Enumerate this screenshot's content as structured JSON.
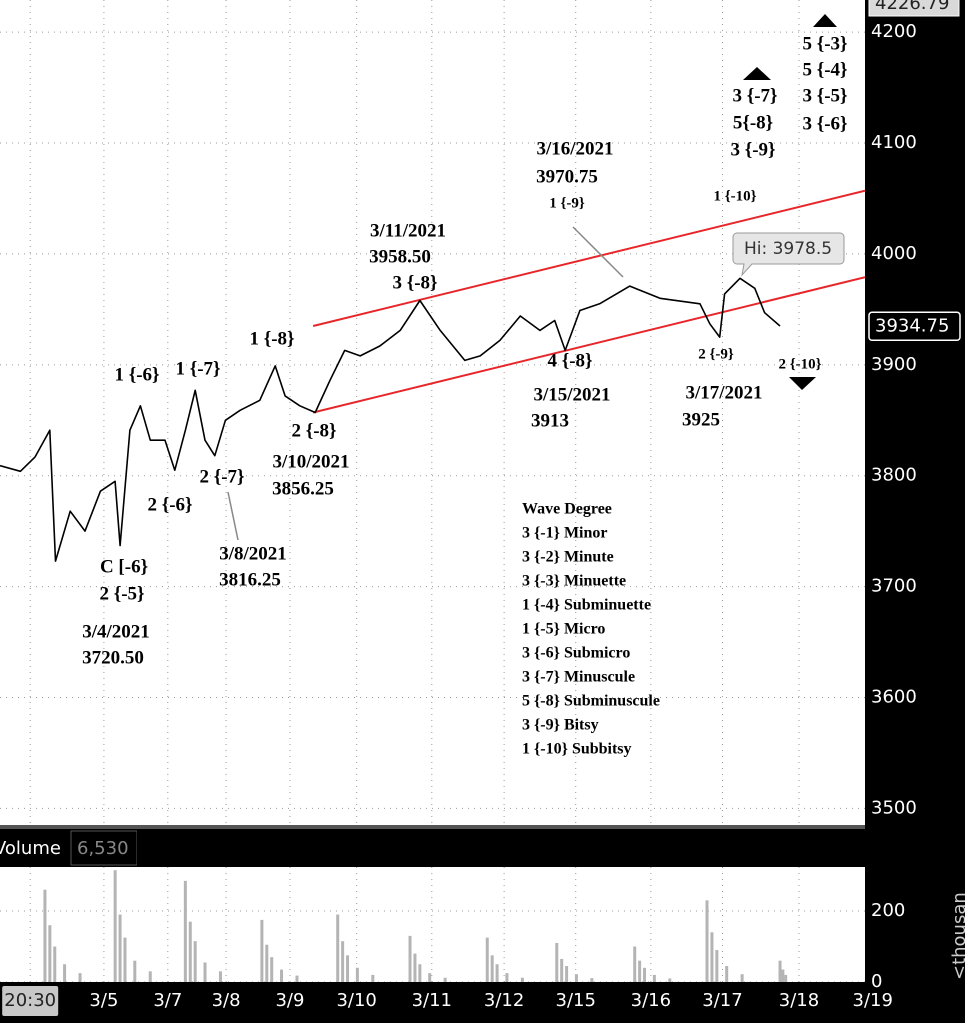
{
  "chart_data": {
    "type": "line",
    "color": "#000000",
    "xlim": [
      -0.43,
      11.89
    ],
    "ylim": [
      3485,
      4229
    ],
    "grid": true,
    "xticks": [
      {
        "value": 0,
        "label": "20:30"
      },
      {
        "value": 1.05,
        "label": "3/5"
      },
      {
        "value": 1.96,
        "label": "3/7"
      },
      {
        "value": 2.79,
        "label": "3/8"
      },
      {
        "value": 3.7,
        "label": "3/9"
      },
      {
        "value": 4.65,
        "label": "3/10"
      },
      {
        "value": 5.72,
        "label": "3/11"
      },
      {
        "value": 6.75,
        "label": "3/12"
      },
      {
        "value": 7.77,
        "label": "3/15"
      },
      {
        "value": 8.84,
        "label": "3/16"
      },
      {
        "value": 9.86,
        "label": "3/17"
      },
      {
        "value": 10.95,
        "label": "3/18"
      },
      {
        "value": 12.0,
        "label": "3/19"
      }
    ],
    "yticks": [
      3500,
      3600,
      3700,
      3800,
      3900,
      4000,
      4100,
      4200
    ],
    "x": [
      -0.43,
      -0.14,
      0.07,
      0.28,
      0.36,
      0.57,
      0.78,
      1.0,
      1.21,
      1.28,
      1.42,
      1.57,
      1.71,
      1.92,
      2.06,
      2.21,
      2.35,
      2.49,
      2.63,
      2.78,
      2.99,
      3.27,
      3.49,
      3.63,
      3.84,
      4.06,
      4.27,
      4.48,
      4.7,
      4.98,
      5.27,
      5.55,
      5.84,
      6.19,
      6.41,
      6.69,
      6.98,
      7.26,
      7.47,
      7.62,
      7.83,
      8.11,
      8.54,
      8.97,
      9.54,
      9.68,
      9.82,
      9.89,
      10.11,
      10.32,
      10.46,
      10.68
    ],
    "values": [
      3809,
      3804,
      3817,
      3841,
      3723,
      3768,
      3750,
      3786,
      3795,
      3737,
      3841,
      3863,
      3832,
      3832,
      3805,
      3841,
      3877,
      3832,
      3818,
      3850,
      3859,
      3868,
      3899,
      3872,
      3863,
      3857,
      3886,
      3913,
      3908,
      3917,
      3931,
      3958,
      3931,
      3904,
      3908,
      3922,
      3944,
      3931,
      3940,
      3913,
      3949,
      3955,
      3971,
      3960,
      3955,
      3937,
      3925,
      3964,
      3978,
      3969,
      3947,
      3935
    ],
    "trendlines": [
      {
        "color": "#e8262a",
        "x": [
          4.03,
          11.89
        ],
        "y": [
          3935,
          4057
        ]
      },
      {
        "color": "#e8262a",
        "x": [
          4.03,
          11.89
        ],
        "y": [
          3857,
          3979
        ]
      }
    ],
    "top_price": 4226.79,
    "last_price": 3934.75,
    "hi_label": "Hi: 3978.5",
    "annotations": [
      "5 {-3}",
      "5 {-4}",
      "3 {-5}",
      "3 {-6}",
      "3 {-7}",
      "5{-8}",
      "3 {-9}",
      "3/16/2021",
      "3970.75",
      "1 {-9}",
      "1 {-10}",
      "3/11/2021",
      "3958.50",
      "3 {-8}",
      "1 {-8}",
      "1 {-6}",
      "1 {-7}",
      "4 {-8}",
      "2 {-9}",
      "2 {-10}",
      "3/15/2021",
      "3913",
      "3/17/2021",
      "3925",
      "2 {-8}",
      "3/10/2021",
      "3856.25",
      "2 {-7}",
      "2 {-6}",
      "3/8/2021",
      "3816.25",
      "C [-6}",
      "2 {-5}",
      "3/4/2021",
      "3720.50"
    ],
    "legend": {
      "title": "Wave Degree",
      "items": [
        "3 {-1} Minor",
        "3 {-2} Minute",
        "3 {-3} Minuette",
        "1 {-4} Subminuette",
        "1 {-5} Micro",
        "3 {-6} Submicro",
        "3 {-7} Minuscule",
        "5 {-8} Subminuscule",
        "3 {-9} Bitsy",
        "1 {-10} Subbitsy"
      ]
    },
    "volume": {
      "label": "Volume",
      "current": "6,530",
      "unit": "<thousan",
      "color": "#b4b4b4",
      "ylim": [
        0,
        324
      ],
      "yticks": [
        0,
        200
      ],
      "x": [
        0.21,
        0.28,
        0.35,
        0.49,
        0.71,
        1.21,
        1.28,
        1.35,
        1.49,
        1.71,
        2.21,
        2.28,
        2.35,
        2.49,
        2.71,
        3.3,
        3.37,
        3.44,
        3.58,
        3.8,
        4.38,
        4.45,
        4.52,
        4.66,
        4.88,
        5.41,
        5.48,
        5.55,
        5.69,
        5.91,
        6.51,
        6.58,
        6.65,
        6.79,
        7.01,
        7.5,
        7.57,
        7.64,
        7.78,
        8.0,
        8.61,
        8.68,
        8.75,
        8.89,
        9.11,
        9.64,
        9.71,
        9.78,
        9.92,
        10.14,
        10.68,
        10.72,
        10.76
      ],
      "values": [
        260,
        160,
        100,
        50,
        25,
        315,
        190,
        125,
        60,
        30,
        285,
        170,
        115,
        55,
        30,
        175,
        105,
        70,
        35,
        18,
        190,
        115,
        75,
        40,
        20,
        130,
        80,
        50,
        25,
        12,
        125,
        75,
        50,
        25,
        12,
        110,
        65,
        45,
        22,
        11,
        100,
        60,
        40,
        20,
        10,
        230,
        140,
        90,
        45,
        22,
        60,
        35,
        20
      ]
    }
  }
}
